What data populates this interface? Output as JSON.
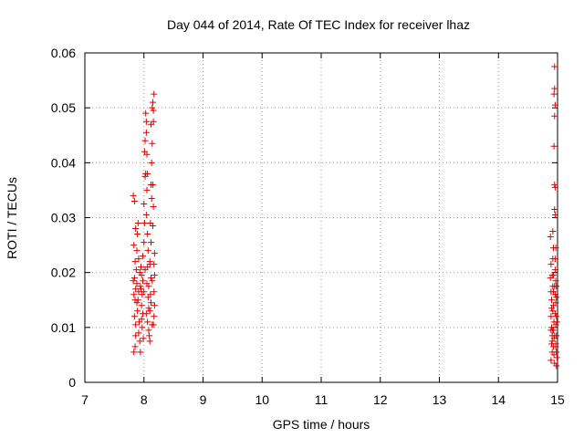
{
  "chart_data": {
    "type": "scatter",
    "title": "Day 044 of 2014, Rate Of TEC Index for receiver lhaz",
    "xlabel": "GPS time / hours",
    "ylabel": "ROTI / TECUs",
    "xlim": [
      7,
      15
    ],
    "ylim": [
      0,
      0.06
    ],
    "x_ticks": [
      7,
      8,
      9,
      10,
      11,
      12,
      13,
      14,
      15
    ],
    "y_ticks": [
      0,
      0.01,
      0.02,
      0.03,
      0.04,
      0.05,
      0.06
    ],
    "x_tick_labels": [
      "7",
      "8",
      "9",
      "10",
      "11",
      "12",
      "13",
      "14",
      "15"
    ],
    "y_tick_labels": [
      "0",
      "0.01",
      "0.02",
      "0.03",
      "0.04",
      "0.05",
      "0.06"
    ],
    "grid": true,
    "marker": "plus",
    "color": "#e00000",
    "points": [
      [
        7.82,
        0.034
      ],
      [
        7.84,
        0.033
      ],
      [
        7.86,
        0.028
      ],
      [
        7.83,
        0.025
      ],
      [
        7.85,
        0.022
      ],
      [
        7.84,
        0.019
      ],
      [
        7.86,
        0.017
      ],
      [
        7.83,
        0.016
      ],
      [
        7.85,
        0.015
      ],
      [
        7.84,
        0.012
      ],
      [
        7.86,
        0.0085
      ],
      [
        7.83,
        0.0055
      ],
      [
        7.85,
        0.0065
      ],
      [
        7.87,
        0.0205
      ],
      [
        7.88,
        0.024
      ],
      [
        7.89,
        0.027
      ],
      [
        7.9,
        0.029
      ],
      [
        7.88,
        0.018
      ],
      [
        7.91,
        0.0165
      ],
      [
        7.9,
        0.015
      ],
      [
        7.89,
        0.013
      ],
      [
        7.92,
        0.011
      ],
      [
        7.91,
        0.009
      ],
      [
        7.93,
        0.0075
      ],
      [
        7.94,
        0.0055
      ],
      [
        7.93,
        0.02
      ],
      [
        7.95,
        0.021
      ],
      [
        7.96,
        0.0195
      ],
      [
        7.95,
        0.017
      ],
      [
        7.97,
        0.016
      ],
      [
        7.96,
        0.014
      ],
      [
        7.98,
        0.0125
      ],
      [
        7.97,
        0.01
      ],
      [
        7.99,
        0.008
      ],
      [
        7.98,
        0.023
      ],
      [
        8.0,
        0.0255
      ],
      [
        8.01,
        0.029
      ],
      [
        8.0,
        0.0325
      ],
      [
        8.02,
        0.0375
      ],
      [
        8.03,
        0.038
      ],
      [
        8.01,
        0.042
      ],
      [
        8.02,
        0.044
      ],
      [
        8.04,
        0.0475
      ],
      [
        8.03,
        0.049
      ],
      [
        8.04,
        0.0455
      ],
      [
        8.05,
        0.0415
      ],
      [
        8.06,
        0.038
      ],
      [
        8.05,
        0.035
      ],
      [
        8.04,
        0.0305
      ],
      [
        8.06,
        0.027
      ],
      [
        8.07,
        0.024
      ],
      [
        8.06,
        0.021
      ],
      [
        8.05,
        0.018
      ],
      [
        8.07,
        0.0155
      ],
      [
        8.08,
        0.0135
      ],
      [
        8.06,
        0.011
      ],
      [
        8.08,
        0.0095
      ],
      [
        8.09,
        0.0085
      ],
      [
        8.1,
        0.0075
      ],
      [
        8.1,
        0.013
      ],
      [
        8.11,
        0.016
      ],
      [
        8.12,
        0.019
      ],
      [
        8.1,
        0.022
      ],
      [
        8.12,
        0.0255
      ],
      [
        8.11,
        0.029
      ],
      [
        8.13,
        0.0335
      ],
      [
        8.12,
        0.036
      ],
      [
        8.13,
        0.04
      ],
      [
        8.14,
        0.0435
      ],
      [
        8.12,
        0.047
      ],
      [
        8.14,
        0.05
      ],
      [
        8.15,
        0.051
      ],
      [
        8.16,
        0.0495
      ],
      [
        8.17,
        0.0525
      ],
      [
        8.16,
        0.0475
      ],
      [
        8.17,
        0.0215
      ],
      [
        8.18,
        0.0195
      ],
      [
        8.17,
        0.0165
      ],
      [
        8.18,
        0.014
      ],
      [
        8.17,
        0.012
      ],
      [
        8.16,
        0.0105
      ],
      [
        8.18,
        0.0235
      ],
      [
        8.15,
        0.0285
      ],
      [
        8.16,
        0.032
      ],
      [
        8.15,
        0.036
      ],
      [
        7.82,
        0.0185
      ],
      [
        7.88,
        0.0145
      ],
      [
        7.94,
        0.0175
      ],
      [
        8.0,
        0.0165
      ],
      [
        8.08,
        0.0175
      ],
      [
        8.14,
        0.0185
      ],
      [
        8.02,
        0.0205
      ],
      [
        7.91,
        0.0225
      ],
      [
        7.98,
        0.0185
      ],
      [
        8.1,
        0.0215
      ],
      [
        8.04,
        0.0125
      ],
      [
        7.86,
        0.0105
      ],
      [
        7.96,
        0.0115
      ],
      [
        8.12,
        0.0145
      ],
      [
        8.14,
        0.0105
      ],
      [
        14.88,
        0.0265
      ],
      [
        14.89,
        0.0215
      ],
      [
        14.88,
        0.019
      ],
      [
        14.89,
        0.0165
      ],
      [
        14.9,
        0.015
      ],
      [
        14.89,
        0.012
      ],
      [
        14.9,
        0.01
      ],
      [
        14.91,
        0.0085
      ],
      [
        14.9,
        0.007
      ],
      [
        14.91,
        0.0055
      ],
      [
        14.89,
        0.004
      ],
      [
        14.92,
        0.0275
      ],
      [
        14.93,
        0.0245
      ],
      [
        14.92,
        0.0225
      ],
      [
        14.93,
        0.0195
      ],
      [
        14.92,
        0.0175
      ],
      [
        14.93,
        0.014
      ],
      [
        14.92,
        0.013
      ],
      [
        14.94,
        0.011
      ],
      [
        14.93,
        0.0095
      ],
      [
        14.94,
        0.008
      ],
      [
        14.93,
        0.0065
      ],
      [
        14.94,
        0.005
      ],
      [
        14.95,
        0.0035
      ],
      [
        14.94,
        0.0525
      ],
      [
        14.95,
        0.0535
      ],
      [
        14.96,
        0.0505
      ],
      [
        14.95,
        0.0485
      ],
      [
        14.94,
        0.043
      ],
      [
        14.95,
        0.036
      ],
      [
        14.96,
        0.0355
      ],
      [
        14.95,
        0.0315
      ],
      [
        14.96,
        0.0305
      ],
      [
        14.95,
        0.0575
      ],
      [
        14.96,
        0.0225
      ],
      [
        14.97,
        0.0245
      ],
      [
        14.96,
        0.0205
      ],
      [
        14.97,
        0.0185
      ],
      [
        14.96,
        0.016
      ],
      [
        14.97,
        0.0145
      ],
      [
        14.98,
        0.012
      ],
      [
        14.97,
        0.0105
      ],
      [
        14.98,
        0.0085
      ],
      [
        14.97,
        0.007
      ],
      [
        14.98,
        0.0055
      ],
      [
        14.99,
        0.0045
      ],
      [
        14.98,
        0.003
      ],
      [
        14.91,
        0.0195
      ],
      [
        14.95,
        0.0175
      ],
      [
        14.98,
        0.0175
      ],
      [
        14.9,
        0.0135
      ],
      [
        14.96,
        0.0125
      ],
      [
        14.99,
        0.011
      ],
      [
        14.92,
        0.0095
      ],
      [
        14.95,
        0.0085
      ],
      [
        14.91,
        0.0075
      ],
      [
        14.97,
        0.0065
      ],
      [
        14.93,
        0.0165
      ],
      [
        14.98,
        0.0155
      ],
      [
        14.89,
        0.0095
      ]
    ]
  }
}
